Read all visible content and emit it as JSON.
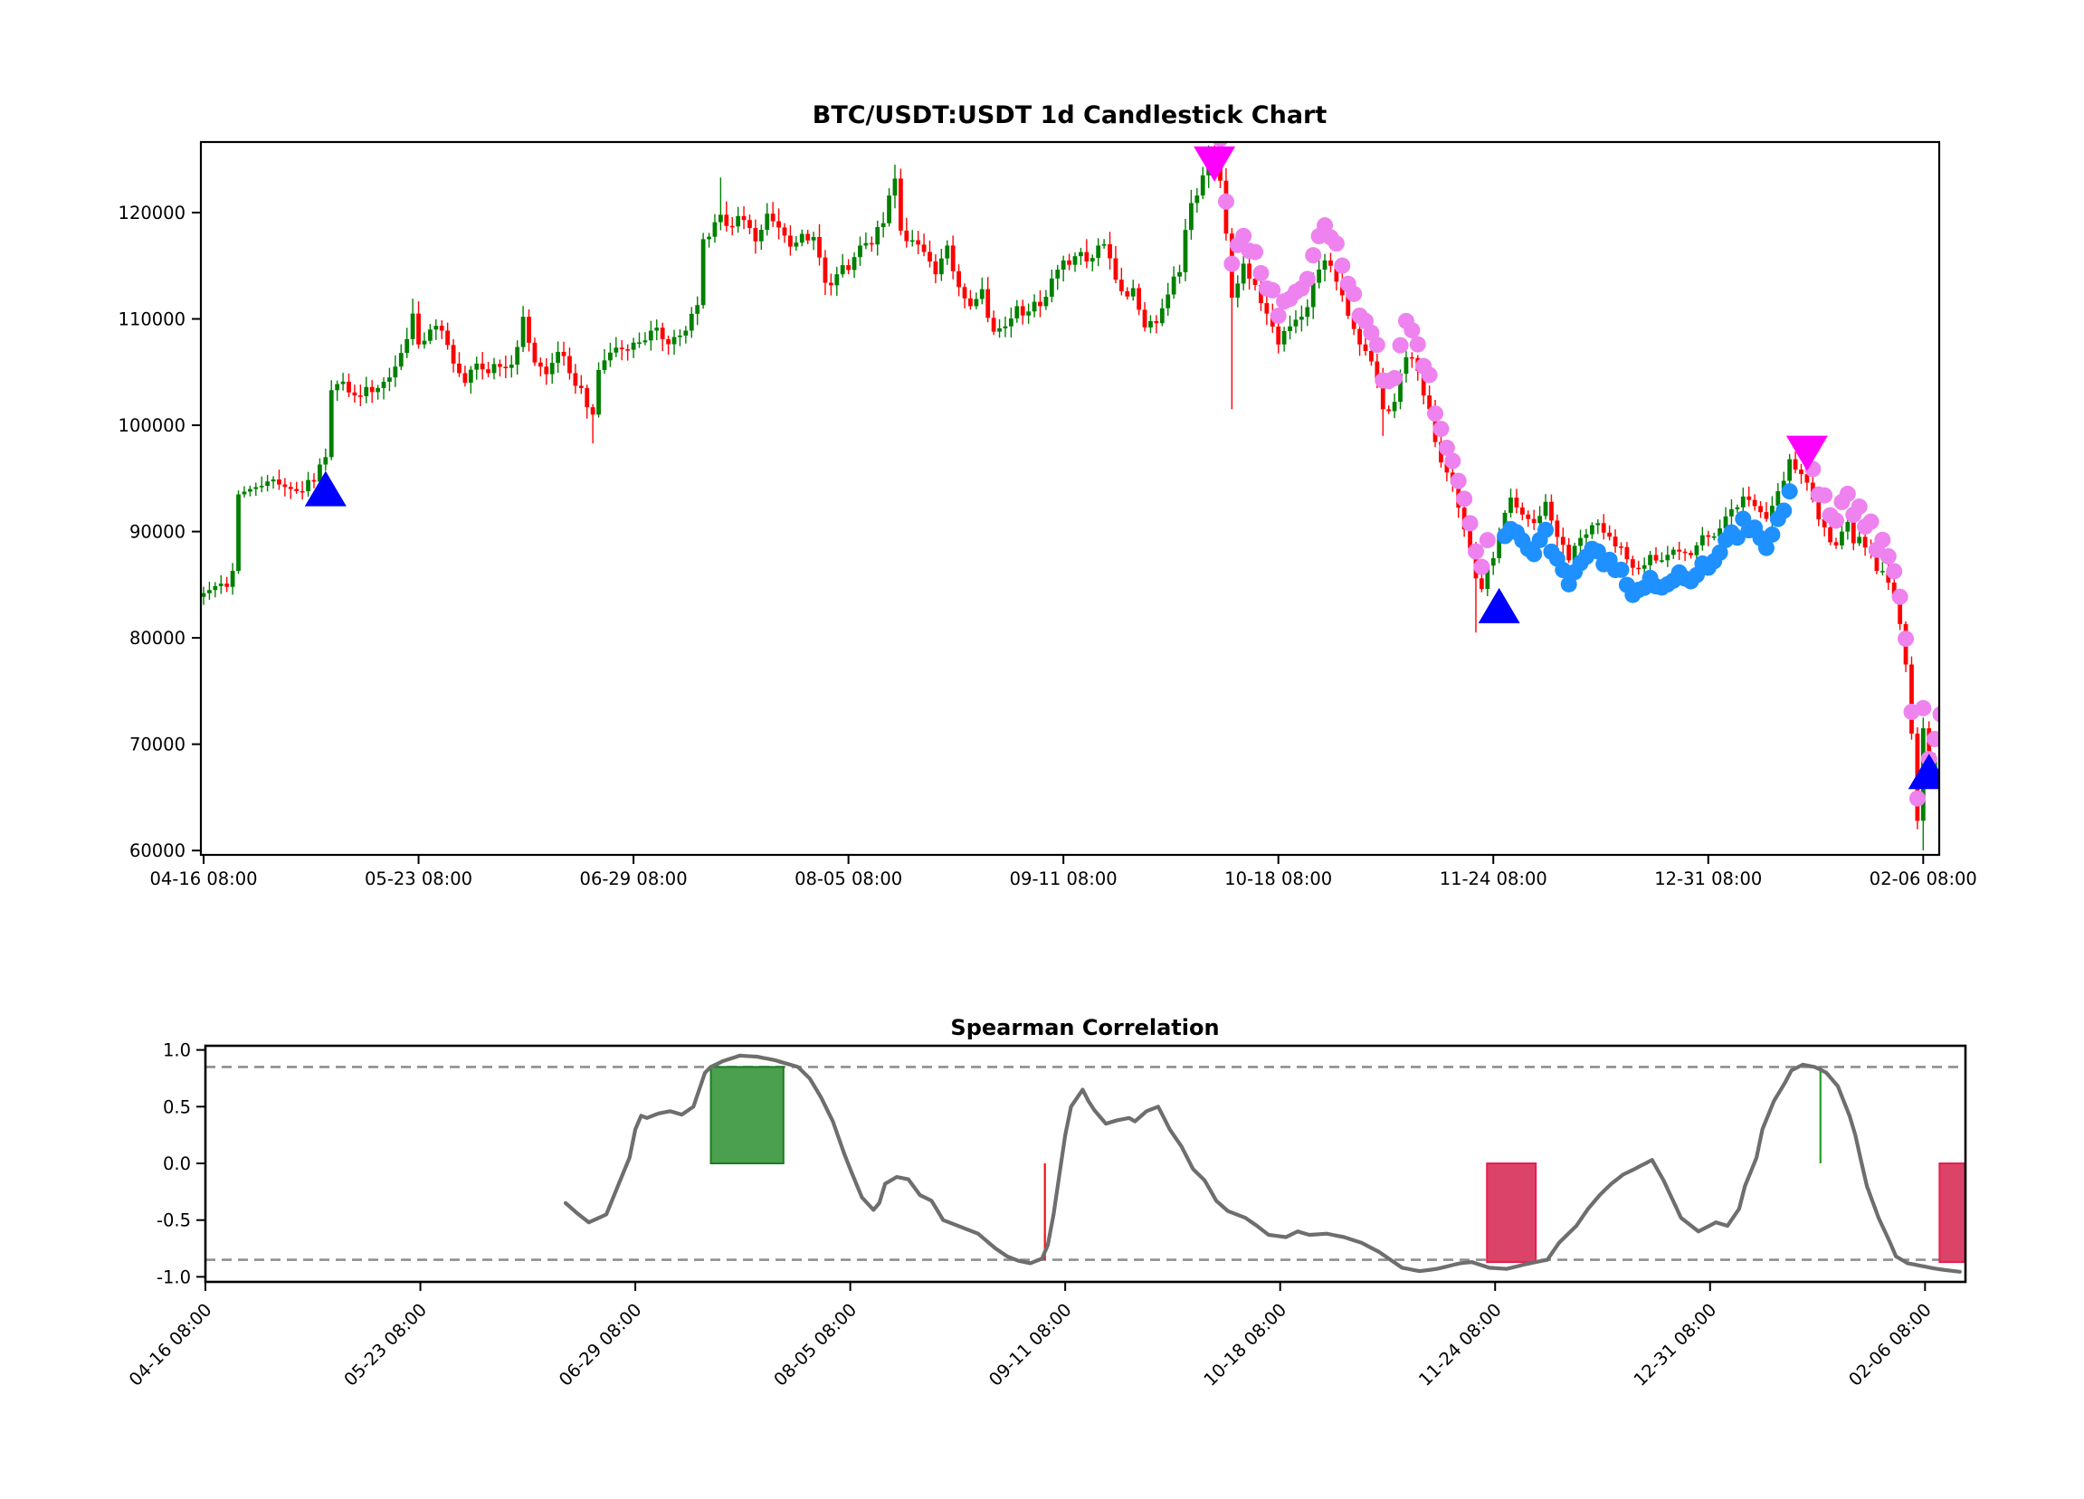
{
  "figure": {
    "kind": "matplotlib-style financial figure",
    "background": "#ffffff"
  },
  "colors": {
    "candle_up": "#008000",
    "candle_down": "#ff0000",
    "buy_marker": "#0000ff",
    "sell_marker": "#ff00ff",
    "violet_dot": "#ee82ee",
    "blue_dot": "#1e90ff",
    "corr_line": "#6e6e6e",
    "threshold_dash": "#8f8f8f",
    "bar_green": "#4aa04e",
    "bar_green_edge": "#1c7c22",
    "bar_crimson": "#dc4368",
    "bar_crimson_edge": "#ea1c4e",
    "vline_red": "#ee1111",
    "vline_green": "#22a022",
    "spine": "#000000",
    "text": "#000000"
  },
  "chart_data": [
    {
      "id": "price",
      "type": "candlestick",
      "title": "BTC/USDT:USDT 1d Candlestick Chart",
      "ylabel": "",
      "xlabel": "",
      "grid": false,
      "legend": null,
      "y_ticks": [
        60000,
        70000,
        80000,
        90000,
        100000,
        110000,
        120000
      ],
      "ylim": [
        59700,
        126700
      ],
      "x_tick_days": [
        0,
        37,
        74,
        111,
        148,
        185,
        222,
        259,
        296
      ],
      "x_tick_labels": [
        "04-16 08:00",
        "05-23 08:00",
        "06-29 08:00",
        "08-05 08:00",
        "09-11 08:00",
        "10-18 08:00",
        "11-24 08:00",
        "12-31 08:00",
        "02-06 08:00"
      ],
      "days_total": 300,
      "close_anchors": [
        [
          0,
          84200
        ],
        [
          1,
          84500
        ],
        [
          3,
          85100
        ],
        [
          4,
          84800
        ],
        [
          5,
          86300
        ],
        [
          6,
          93500
        ],
        [
          8,
          94000
        ],
        [
          10,
          94300
        ],
        [
          12,
          94900
        ],
        [
          14,
          94200
        ],
        [
          15,
          94000
        ],
        [
          17,
          93800
        ],
        [
          19,
          94700
        ],
        [
          21,
          97000
        ],
        [
          22,
          103300
        ],
        [
          24,
          104100
        ],
        [
          26,
          102800
        ],
        [
          28,
          103600
        ],
        [
          30,
          103500
        ],
        [
          32,
          104500
        ],
        [
          34,
          106800
        ],
        [
          36,
          110500
        ],
        [
          37,
          107600
        ],
        [
          39,
          109000
        ],
        [
          41,
          108900
        ],
        [
          43,
          105800
        ],
        [
          45,
          104000
        ],
        [
          47,
          105800
        ],
        [
          49,
          104900
        ],
        [
          51,
          105500
        ],
        [
          53,
          105700
        ],
        [
          55,
          110200
        ],
        [
          57,
          105900
        ],
        [
          59,
          104800
        ],
        [
          61,
          106900
        ],
        [
          63,
          104900
        ],
        [
          65,
          103500
        ],
        [
          67,
          101000
        ],
        [
          68,
          105200
        ],
        [
          69,
          106100
        ],
        [
          71,
          107300
        ],
        [
          73,
          107100
        ],
        [
          75,
          107800
        ],
        [
          77,
          108900
        ],
        [
          79,
          108100
        ],
        [
          81,
          108300
        ],
        [
          83,
          108900
        ],
        [
          85,
          111300
        ],
        [
          86,
          117500
        ],
        [
          88,
          119100
        ],
        [
          89,
          119800
        ],
        [
          91,
          118700
        ],
        [
          93,
          119300
        ],
        [
          95,
          117300
        ],
        [
          97,
          119900
        ],
        [
          99,
          118600
        ],
        [
          101,
          116800
        ],
        [
          103,
          118000
        ],
        [
          105,
          117700
        ],
        [
          107,
          113400
        ],
        [
          109,
          114200
        ],
        [
          111,
          114600
        ],
        [
          113,
          116900
        ],
        [
          115,
          117000
        ],
        [
          117,
          119000
        ],
        [
          119,
          123200
        ],
        [
          120,
          118300
        ],
        [
          122,
          117400
        ],
        [
          124,
          116300
        ],
        [
          126,
          114200
        ],
        [
          128,
          116900
        ],
        [
          130,
          113000
        ],
        [
          132,
          111200
        ],
        [
          134,
          112800
        ],
        [
          136,
          108800
        ],
        [
          138,
          109300
        ],
        [
          140,
          111200
        ],
        [
          142,
          110700
        ],
        [
          144,
          111200
        ],
        [
          146,
          113800
        ],
        [
          148,
          115500
        ],
        [
          150,
          115900
        ],
        [
          152,
          115400
        ],
        [
          154,
          116900
        ],
        [
          156,
          115700
        ],
        [
          158,
          112600
        ],
        [
          160,
          112900
        ],
        [
          162,
          109200
        ],
        [
          164,
          109600
        ],
        [
          166,
          112300
        ],
        [
          168,
          114400
        ],
        [
          170,
          120900
        ],
        [
          172,
          123500
        ],
        [
          173,
          125100
        ],
        [
          175,
          123000
        ],
        [
          177,
          112000
        ],
        [
          179,
          115200
        ],
        [
          181,
          113200
        ],
        [
          183,
          110500
        ],
        [
          185,
          107600
        ],
        [
          187,
          109300
        ],
        [
          189,
          110200
        ],
        [
          191,
          113400
        ],
        [
          193,
          115500
        ],
        [
          195,
          113500
        ],
        [
          197,
          110300
        ],
        [
          199,
          107600
        ],
        [
          201,
          106000
        ],
        [
          203,
          101500
        ],
        [
          205,
          102200
        ],
        [
          207,
          106400
        ],
        [
          209,
          105100
        ],
        [
          211,
          101500
        ],
        [
          213,
          96500
        ],
        [
          215,
          94500
        ],
        [
          217,
          90200
        ],
        [
          219,
          85600
        ],
        [
          220,
          84600
        ],
        [
          221,
          86800
        ],
        [
          222,
          87500
        ],
        [
          223,
          89500
        ],
        [
          225,
          93200
        ],
        [
          227,
          91600
        ],
        [
          229,
          90800
        ],
        [
          231,
          92800
        ],
        [
          233,
          89500
        ],
        [
          235,
          87300
        ],
        [
          237,
          89400
        ],
        [
          239,
          90600
        ],
        [
          241,
          89900
        ],
        [
          243,
          88600
        ],
        [
          245,
          87400
        ],
        [
          247,
          86500
        ],
        [
          249,
          87800
        ],
        [
          251,
          87300
        ],
        [
          253,
          88300
        ],
        [
          255,
          88000
        ],
        [
          257,
          88700
        ],
        [
          259,
          89500
        ],
        [
          261,
          90300
        ],
        [
          263,
          92100
        ],
        [
          265,
          93300
        ],
        [
          267,
          92400
        ],
        [
          269,
          91200
        ],
        [
          271,
          93800
        ],
        [
          273,
          96800
        ],
        [
          275,
          95400
        ],
        [
          276,
          94600
        ],
        [
          277,
          93000
        ],
        [
          279,
          90400
        ],
        [
          280,
          89000
        ],
        [
          281,
          88700
        ],
        [
          282,
          90000
        ],
        [
          283,
          90900
        ],
        [
          284,
          88900
        ],
        [
          285,
          89500
        ],
        [
          286,
          88500
        ],
        [
          287,
          88000
        ],
        [
          288,
          86300
        ],
        [
          289,
          86300
        ],
        [
          290,
          85200
        ],
        [
          291,
          83800
        ],
        [
          292,
          81300
        ],
        [
          293,
          77500
        ],
        [
          294,
          71000
        ],
        [
          295,
          62800
        ],
        [
          296,
          71500
        ],
        [
          297,
          67000
        ],
        [
          298,
          68800
        ],
        [
          299,
          70500
        ]
      ],
      "wick_overrides_high": [
        [
          36,
          111900
        ],
        [
          89,
          123300
        ],
        [
          119,
          124500
        ],
        [
          173,
          126300
        ],
        [
          296,
          72500
        ]
      ],
      "wick_overrides_low": [
        [
          67,
          98300
        ],
        [
          177,
          101500
        ],
        [
          203,
          99000
        ],
        [
          219,
          80500
        ],
        [
          295,
          62000
        ],
        [
          296,
          60000
        ],
        [
          297,
          65800
        ]
      ],
      "buy_markers": [
        [
          21,
          94000
        ],
        [
          223,
          83000
        ],
        [
          297,
          67400
        ]
      ],
      "sell_markers": [
        [
          174,
          124600
        ],
        [
          276,
          97400
        ]
      ],
      "dot_trails": [
        {
          "color": "violet",
          "from": 175,
          "to": 221,
          "offset": 0.027
        },
        {
          "color": "blue",
          "from": 224,
          "to": 273,
          "offset": -0.028
        },
        {
          "color": "violet",
          "from": 276,
          "to": 299,
          "offset": 0.028
        }
      ]
    },
    {
      "id": "correlation",
      "type": "line",
      "title": "Spearman Correlation",
      "grid": false,
      "y_ticks": [
        "1.0",
        "0.5",
        "0.0",
        "-0.5",
        "-1.0"
      ],
      "y_tick_values": [
        1.0,
        0.5,
        0.0,
        -0.5,
        -1.0
      ],
      "ylim": [
        -1.045,
        1.037
      ],
      "thresholds": [
        0.85,
        -0.85
      ],
      "x_tick_days": [
        0,
        37,
        74,
        111,
        148,
        185,
        222,
        259,
        296
      ],
      "x_tick_labels": [
        "04-16 08:00",
        "05-23 08:00",
        "06-29 08:00",
        "08-05 08:00",
        "09-11 08:00",
        "10-18 08:00",
        "11-24 08:00",
        "12-31 08:00",
        "02-06 08:00"
      ],
      "line_anchors": [
        [
          62,
          -0.35
        ],
        [
          64,
          -0.44
        ],
        [
          66,
          -0.52
        ],
        [
          69,
          -0.45
        ],
        [
          71,
          -0.2
        ],
        [
          73,
          0.05
        ],
        [
          74,
          0.3
        ],
        [
          75,
          0.42
        ],
        [
          76,
          0.4
        ],
        [
          78,
          0.44
        ],
        [
          80,
          0.46
        ],
        [
          82,
          0.43
        ],
        [
          84,
          0.5
        ],
        [
          85,
          0.65
        ],
        [
          86,
          0.8
        ],
        [
          87,
          0.85
        ],
        [
          89,
          0.9
        ],
        [
          92,
          0.95
        ],
        [
          95,
          0.94
        ],
        [
          98,
          0.91
        ],
        [
          100,
          0.88
        ],
        [
          102,
          0.85
        ],
        [
          104,
          0.75
        ],
        [
          106,
          0.58
        ],
        [
          108,
          0.37
        ],
        [
          110,
          0.08
        ],
        [
          111,
          -0.05
        ],
        [
          113,
          -0.3
        ],
        [
          115,
          -0.41
        ],
        [
          116,
          -0.35
        ],
        [
          117,
          -0.18
        ],
        [
          119,
          -0.12
        ],
        [
          121,
          -0.14
        ],
        [
          123,
          -0.28
        ],
        [
          125,
          -0.33
        ],
        [
          127,
          -0.5
        ],
        [
          130,
          -0.56
        ],
        [
          133,
          -0.62
        ],
        [
          136,
          -0.75
        ],
        [
          138,
          -0.82
        ],
        [
          140,
          -0.86
        ],
        [
          142,
          -0.88
        ],
        [
          144,
          -0.84
        ],
        [
          145,
          -0.72
        ],
        [
          146,
          -0.45
        ],
        [
          147,
          -0.1
        ],
        [
          148,
          0.25
        ],
        [
          149,
          0.5
        ],
        [
          151,
          0.65
        ],
        [
          152,
          0.55
        ],
        [
          153,
          0.47
        ],
        [
          155,
          0.35
        ],
        [
          157,
          0.38
        ],
        [
          159,
          0.4
        ],
        [
          160,
          0.37
        ],
        [
          162,
          0.46
        ],
        [
          164,
          0.5
        ],
        [
          166,
          0.3
        ],
        [
          168,
          0.15
        ],
        [
          170,
          -0.05
        ],
        [
          172,
          -0.15
        ],
        [
          174,
          -0.33
        ],
        [
          176,
          -0.42
        ],
        [
          179,
          -0.48
        ],
        [
          181,
          -0.55
        ],
        [
          183,
          -0.63
        ],
        [
          186,
          -0.65
        ],
        [
          188,
          -0.6
        ],
        [
          190,
          -0.63
        ],
        [
          193,
          -0.62
        ],
        [
          196,
          -0.65
        ],
        [
          199,
          -0.7
        ],
        [
          202,
          -0.78
        ],
        [
          204,
          -0.85
        ],
        [
          206,
          -0.92
        ],
        [
          209,
          -0.95
        ],
        [
          212,
          -0.93
        ],
        [
          216,
          -0.88
        ],
        [
          218,
          -0.87
        ],
        [
          221,
          -0.92
        ],
        [
          224,
          -0.93
        ],
        [
          228,
          -0.88
        ],
        [
          231,
          -0.85
        ],
        [
          233,
          -0.7
        ],
        [
          236,
          -0.55
        ],
        [
          238,
          -0.4
        ],
        [
          240,
          -0.28
        ],
        [
          242,
          -0.18
        ],
        [
          244,
          -0.1
        ],
        [
          246,
          -0.05
        ],
        [
          249,
          0.03
        ],
        [
          251,
          -0.15
        ],
        [
          254,
          -0.48
        ],
        [
          257,
          -0.6
        ],
        [
          260,
          -0.52
        ],
        [
          262,
          -0.55
        ],
        [
          264,
          -0.4
        ],
        [
          265,
          -0.2
        ],
        [
          267,
          0.05
        ],
        [
          268,
          0.3
        ],
        [
          270,
          0.55
        ],
        [
          272,
          0.72
        ],
        [
          273,
          0.82
        ],
        [
          275,
          0.87
        ],
        [
          277,
          0.85
        ],
        [
          279,
          0.8
        ],
        [
          281,
          0.68
        ],
        [
          283,
          0.42
        ],
        [
          284,
          0.25
        ],
        [
          285,
          0.02
        ],
        [
          286,
          -0.2
        ],
        [
          288,
          -0.48
        ],
        [
          290,
          -0.7
        ],
        [
          291,
          -0.82
        ],
        [
          293,
          -0.88
        ],
        [
          295,
          -0.9
        ],
        [
          298,
          -0.93
        ],
        [
          301,
          -0.95
        ],
        [
          303,
          -0.96
        ]
      ],
      "bars": [
        {
          "from": 87,
          "to": 99.5,
          "v": 0.85,
          "kind": "green"
        },
        {
          "from": 220.6,
          "to": 229,
          "v": -0.87,
          "kind": "crimson"
        },
        {
          "from": 298.5,
          "to": 303,
          "v": -0.87,
          "kind": "crimson"
        }
      ],
      "vlines": [
        {
          "d": 144.5,
          "v": -0.85,
          "kind": "red"
        },
        {
          "d": 278,
          "v": 0.85,
          "kind": "green"
        }
      ]
    }
  ]
}
